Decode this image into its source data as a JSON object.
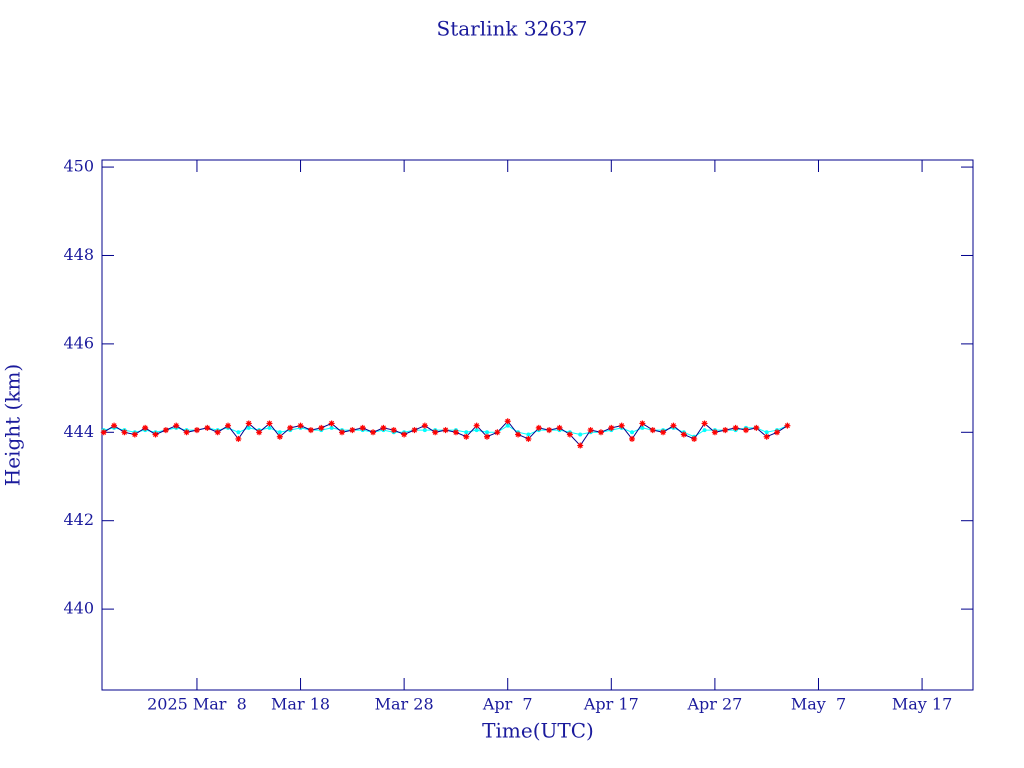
{
  "chart_data": {
    "type": "line",
    "title": "Starlink 32637",
    "xlabel": "Time(UTC)",
    "ylabel": "Height (km)",
    "x": [
      "2025-02-27",
      "2025-02-28",
      "2025-03-01",
      "2025-03-02",
      "2025-03-03",
      "2025-03-04",
      "2025-03-05",
      "2025-03-06",
      "2025-03-07",
      "2025-03-08",
      "2025-03-09",
      "2025-03-10",
      "2025-03-11",
      "2025-03-12",
      "2025-03-13",
      "2025-03-14",
      "2025-03-15",
      "2025-03-16",
      "2025-03-17",
      "2025-03-18",
      "2025-03-19",
      "2025-03-20",
      "2025-03-21",
      "2025-03-22",
      "2025-03-23",
      "2025-03-24",
      "2025-03-25",
      "2025-03-26",
      "2025-03-27",
      "2025-03-28",
      "2025-03-29",
      "2025-03-30",
      "2025-03-31",
      "2025-04-01",
      "2025-04-02",
      "2025-04-03",
      "2025-04-04",
      "2025-04-05",
      "2025-04-06",
      "2025-04-07",
      "2025-04-08",
      "2025-04-09",
      "2025-04-10",
      "2025-04-11",
      "2025-04-12",
      "2025-04-13",
      "2025-04-14",
      "2025-04-15",
      "2025-04-16",
      "2025-04-17",
      "2025-04-18",
      "2025-04-19",
      "2025-04-20",
      "2025-04-21",
      "2025-04-22",
      "2025-04-23",
      "2025-04-24",
      "2025-04-25",
      "2025-04-26",
      "2025-04-27",
      "2025-04-28",
      "2025-04-29",
      "2025-04-30",
      "2025-05-01",
      "2025-05-02",
      "2025-05-03",
      "2025-05-04"
    ],
    "series": [
      {
        "color": "#00ffff",
        "values": [
          444.05,
          444.1,
          444.05,
          444.0,
          444.05,
          444.0,
          444.05,
          444.1,
          444.05,
          444.05,
          444.1,
          444.05,
          444.1,
          444.0,
          444.1,
          444.05,
          444.1,
          444.0,
          444.05,
          444.1,
          444.05,
          444.05,
          444.1,
          444.05,
          444.05,
          444.05,
          444.0,
          444.05,
          444.0,
          444.0,
          444.05,
          444.05,
          444.05,
          444.05,
          444.05,
          444.0,
          444.05,
          444.0,
          444.0,
          444.15,
          444.0,
          443.95,
          444.05,
          444.05,
          444.05,
          444.0,
          443.95,
          444.0,
          444.0,
          444.05,
          444.1,
          444.0,
          444.1,
          444.05,
          444.05,
          444.1,
          444.0,
          443.9,
          444.05,
          444.05,
          444.05,
          444.05,
          444.1,
          444.1,
          444.0,
          444.05,
          444.15
        ]
      },
      {
        "color": "#ff0000",
        "line_color": "#00008b",
        "values": [
          444.0,
          444.15,
          444.0,
          443.95,
          444.1,
          443.95,
          444.05,
          444.15,
          444.0,
          444.05,
          444.1,
          444.0,
          444.15,
          443.85,
          444.2,
          444.0,
          444.2,
          443.9,
          444.1,
          444.15,
          444.05,
          444.1,
          444.2,
          444.0,
          444.05,
          444.1,
          444.0,
          444.1,
          444.05,
          443.95,
          444.05,
          444.15,
          444.0,
          444.05,
          444.0,
          443.9,
          444.15,
          443.9,
          444.0,
          444.25,
          443.95,
          443.85,
          444.1,
          444.05,
          444.1,
          443.95,
          443.7,
          444.05,
          444.0,
          444.1,
          444.15,
          443.85,
          444.2,
          444.05,
          444.0,
          444.15,
          443.95,
          443.85,
          444.2,
          444.0,
          444.05,
          444.1,
          444.05,
          444.1,
          443.9,
          444.0,
          444.15
        ]
      }
    ],
    "xlim": [
      "2025-02-26T20:00Z",
      "2025-05-21T22:00Z"
    ],
    "xticks": [
      {
        "value": "2025-03-08",
        "label": "2025 Mar  8"
      },
      {
        "value": "2025-03-18",
        "label": "Mar 18"
      },
      {
        "value": "2025-03-28",
        "label": "Mar 28"
      },
      {
        "value": "2025-04-07",
        "label": "Apr  7"
      },
      {
        "value": "2025-04-17",
        "label": "Apr 17"
      },
      {
        "value": "2025-04-27",
        "label": "Apr 27"
      },
      {
        "value": "2025-05-07",
        "label": "May  7"
      },
      {
        "value": "2025-05-17",
        "label": "May 17"
      }
    ],
    "ylim": [
      438.17,
      450.16
    ],
    "yticks": [
      440,
      442,
      444,
      446,
      448,
      450
    ],
    "axis_color": "#00008b"
  }
}
